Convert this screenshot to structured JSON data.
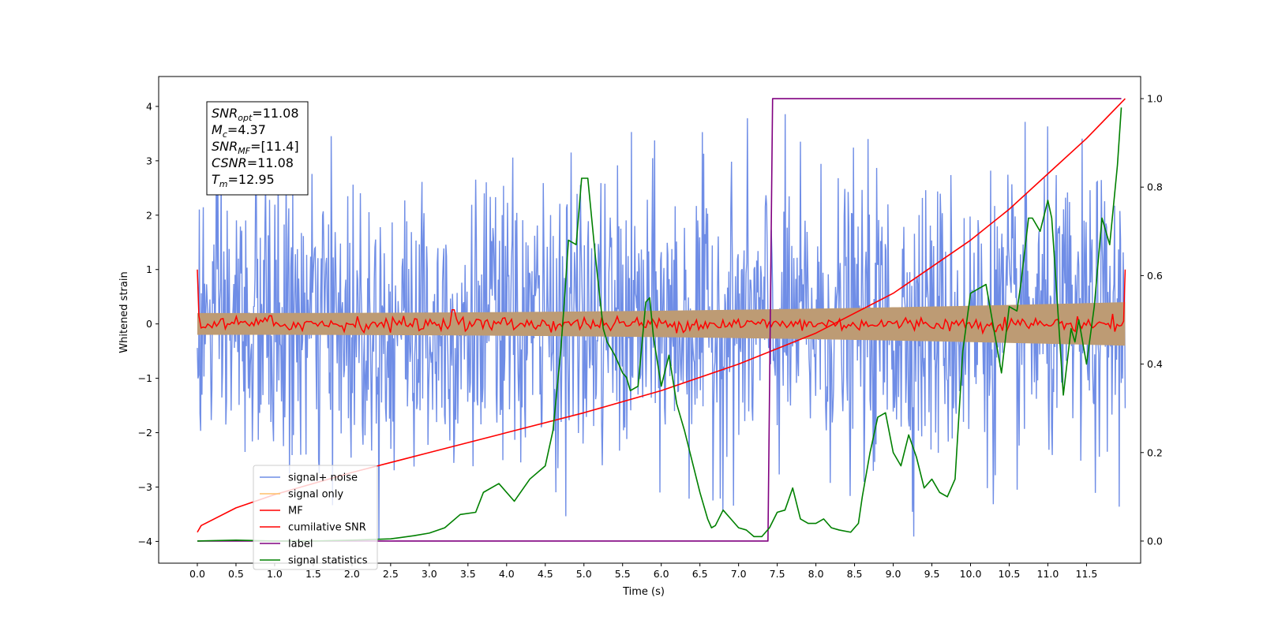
{
  "chart_data": {
    "type": "line",
    "xlabel": "Time (s)",
    "ylabel": "Whitened strain",
    "xlim": [
      -0.5,
      12.2
    ],
    "ylim": [
      -4.4,
      4.55
    ],
    "y2lim": [
      -0.05,
      1.05
    ],
    "x_ticks": [
      0.0,
      0.5,
      1.0,
      1.5,
      2.0,
      2.5,
      3.0,
      3.5,
      4.0,
      4.5,
      5.0,
      5.5,
      6.0,
      6.5,
      7.0,
      7.5,
      8.0,
      8.5,
      9.0,
      9.5,
      10.0,
      10.5,
      11.0,
      11.5
    ],
    "x_tick_labels": [
      "0.0",
      "0.5",
      "1.0",
      "1.5",
      "2.0",
      "2.5",
      "3.0",
      "3.5",
      "4.0",
      "4.5",
      "5.0",
      "5.5",
      "6.0",
      "6.5",
      "7.0",
      "7.5",
      "8.0",
      "8.5",
      "9.0",
      "9.5",
      "10.0",
      "10.5",
      "11.0",
      "11.5"
    ],
    "y_ticks": [
      -4,
      -3,
      -2,
      -1,
      0,
      1,
      2,
      3,
      4
    ],
    "y_tick_labels": [
      "−4",
      "−3",
      "−2",
      "−1",
      "0",
      "1",
      "2",
      "3",
      "4"
    ],
    "y2_ticks": [
      0.0,
      0.2,
      0.4,
      0.6,
      0.8,
      1.0
    ],
    "y2_tick_labels": [
      "0.0",
      "0.2",
      "0.4",
      "0.6",
      "0.8",
      "1.0"
    ],
    "grid": false,
    "legend_position": "lower-left",
    "legend": [
      {
        "name": "signal+ noise",
        "color": "#6f8de6"
      },
      {
        "name": "signal only",
        "color": "#ffbf69"
      },
      {
        "name": "MF",
        "color": "#ff0000"
      },
      {
        "name": "cumilative SNR",
        "color": "#ff0000"
      },
      {
        "name": "label",
        "color": "#800080"
      },
      {
        "name": "signal statistics",
        "color": "#008000"
      }
    ],
    "series": [
      {
        "name": "signal+ noise",
        "axis": "left",
        "color": "#6f8de6",
        "noise_std": 1.3,
        "x_range": [
          0.0,
          12.0
        ],
        "samples": 1400
      },
      {
        "name": "signal only",
        "axis": "left",
        "color": "#bd9b74",
        "envelope": {
          "x": [
            0.0,
            12.0
          ],
          "amplitude": [
            0.2,
            0.4
          ]
        }
      },
      {
        "name": "MF",
        "axis": "left",
        "color": "#ff0000",
        "x_range": [
          0.0,
          12.0
        ],
        "start_value": 1.0,
        "end_value": 1.0,
        "level": 0.0
      },
      {
        "name": "cumilative SNR",
        "axis": "right",
        "color": "#ff0000",
        "x": [
          0.0,
          0.05,
          0.5,
          1.0,
          2.0,
          3.0,
          4.0,
          5.0,
          6.0,
          7.0,
          7.5,
          8.0,
          9.0,
          10.0,
          10.5,
          11.0,
          11.5,
          12.0
        ],
        "y": [
          0.02,
          0.035,
          0.075,
          0.105,
          0.155,
          0.2,
          0.245,
          0.29,
          0.34,
          0.4,
          0.435,
          0.47,
          0.56,
          0.68,
          0.75,
          0.83,
          0.91,
          1.0
        ]
      },
      {
        "name": "label",
        "axis": "right",
        "color": "#800080",
        "x": [
          0.0,
          7.38,
          7.44,
          11.95
        ],
        "y": [
          0.0,
          0.0,
          1.0,
          1.0
        ]
      },
      {
        "name": "signal statistics",
        "axis": "right",
        "color": "#008000",
        "x": [
          0.0,
          0.5,
          1.0,
          1.5,
          2.0,
          2.5,
          2.8,
          3.0,
          3.2,
          3.4,
          3.6,
          3.7,
          3.9,
          4.1,
          4.3,
          4.5,
          4.6,
          4.7,
          4.75,
          4.8,
          4.9,
          4.97,
          5.05,
          5.15,
          5.25,
          5.3,
          5.4,
          5.5,
          5.55,
          5.6,
          5.7,
          5.8,
          5.85,
          5.9,
          6.0,
          6.1,
          6.2,
          6.3,
          6.4,
          6.5,
          6.6,
          6.65,
          6.7,
          6.8,
          6.9,
          7.0,
          7.1,
          7.2,
          7.3,
          7.4,
          7.5,
          7.6,
          7.7,
          7.8,
          7.9,
          8.0,
          8.1,
          8.2,
          8.3,
          8.45,
          8.55,
          8.6,
          8.7,
          8.8,
          8.9,
          9.0,
          9.1,
          9.2,
          9.3,
          9.4,
          9.5,
          9.6,
          9.7,
          9.8,
          9.9,
          10.0,
          10.1,
          10.2,
          10.3,
          10.4,
          10.5,
          10.6,
          10.65,
          10.75,
          10.8,
          10.9,
          11.0,
          11.05,
          11.1,
          11.2,
          11.3,
          11.35,
          11.4,
          11.5,
          11.6,
          11.7,
          11.75,
          11.8,
          11.9,
          11.95
        ],
        "y": [
          0.0,
          0.002,
          0.0,
          0.0,
          0.002,
          0.005,
          0.012,
          0.018,
          0.03,
          0.06,
          0.065,
          0.11,
          0.13,
          0.09,
          0.14,
          0.17,
          0.25,
          0.43,
          0.55,
          0.68,
          0.67,
          0.82,
          0.82,
          0.64,
          0.48,
          0.45,
          0.42,
          0.38,
          0.37,
          0.34,
          0.35,
          0.54,
          0.55,
          0.46,
          0.35,
          0.42,
          0.31,
          0.25,
          0.18,
          0.11,
          0.05,
          0.03,
          0.035,
          0.07,
          0.05,
          0.03,
          0.025,
          0.01,
          0.01,
          0.03,
          0.065,
          0.07,
          0.12,
          0.05,
          0.04,
          0.04,
          0.05,
          0.03,
          0.025,
          0.02,
          0.04,
          0.1,
          0.2,
          0.28,
          0.29,
          0.2,
          0.17,
          0.24,
          0.19,
          0.12,
          0.14,
          0.11,
          0.1,
          0.14,
          0.43,
          0.56,
          0.57,
          0.58,
          0.48,
          0.38,
          0.53,
          0.52,
          0.58,
          0.73,
          0.73,
          0.7,
          0.77,
          0.73,
          0.6,
          0.33,
          0.48,
          0.45,
          0.5,
          0.4,
          0.53,
          0.73,
          0.7,
          0.67,
          0.85,
          0.98
        ]
      }
    ],
    "annotation": {
      "snr_opt_label": "SNR",
      "snr_opt_sub": "opt",
      "snr_opt_value": "=11.08",
      "mc_label": "M",
      "mc_sub": "c",
      "mc_value": "=4.37",
      "snr_mf_label": "SNR",
      "snr_mf_sub": "MF",
      "snr_mf_value": "=[11.4]",
      "csnr_label": "CSNR",
      "csnr_value": "=11.08",
      "tm_label": "T",
      "tm_sub": "m",
      "tm_value": "=12.95"
    }
  }
}
